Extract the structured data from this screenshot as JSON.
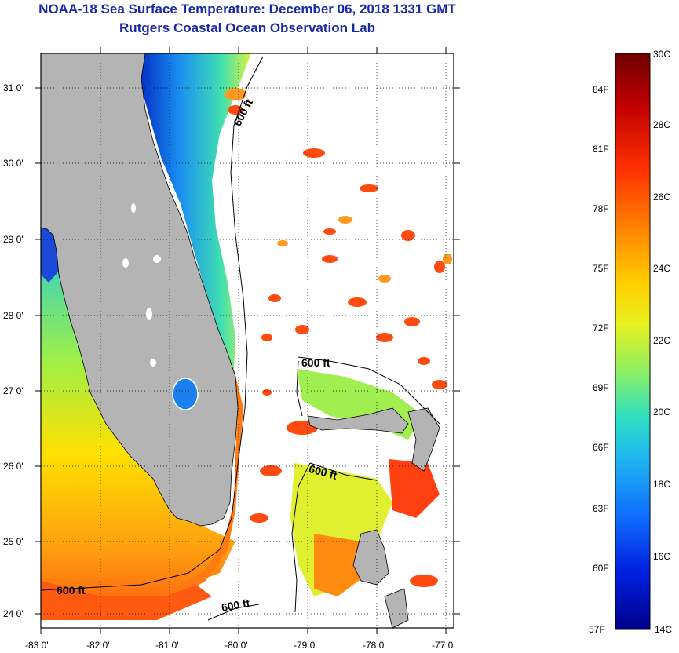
{
  "title": "NOAA-18 Sea Surface Temperature:  December 06, 2018 1331 GMT",
  "subtitle": "Rutgers Coastal Ocean Observation Lab",
  "map": {
    "lat_labels": [
      "31 0'",
      "30 0'",
      "29 0'",
      "28 0'",
      "27 0'",
      "26 0'",
      "25 0'",
      "24 0'"
    ],
    "lon_labels": [
      "-83 0'",
      "-82 0'",
      "-81 0'",
      "-80 0'",
      "-79 0'",
      "-78 0'",
      "-77 0'"
    ],
    "contour_labels": [
      "600 ft",
      "600 ft",
      "600 ft",
      "600 ft",
      "600 ft"
    ],
    "land_color": "#b4b4b4",
    "cloud_color": "#ffffff"
  },
  "colorbar": {
    "top_label": "30C",
    "bottom_f": "57F",
    "bottom_c": "14C",
    "f_labels": [
      "84F",
      "81F",
      "78F",
      "75F",
      "72F",
      "69F",
      "66F",
      "63F",
      "60F"
    ],
    "c_labels": [
      "28C",
      "26C",
      "24C",
      "22C",
      "20C",
      "18C",
      "16C"
    ],
    "colors": [
      "#7a0000",
      "#c40000",
      "#ff3a00",
      "#ff8c00",
      "#ffd800",
      "#d8ff20",
      "#7cff7c",
      "#20e0e0",
      "#20a0ff",
      "#1050ff",
      "#0010d0",
      "#00008a"
    ]
  }
}
